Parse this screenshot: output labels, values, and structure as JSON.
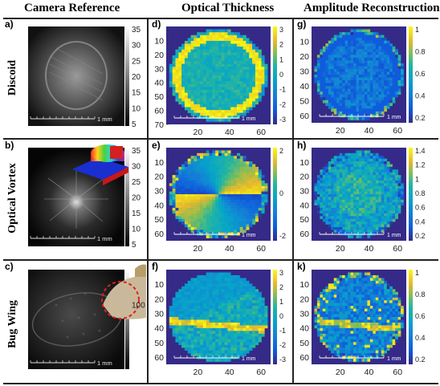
{
  "columns": [
    "Camera Reference",
    "Optical Thickness",
    "Amplitude Reconstruction"
  ],
  "rows": [
    "Discoid",
    "Optical Vortex",
    "Bug Wing"
  ],
  "scale_bar_label": "1 mm",
  "panels": [
    {
      "label": "a)",
      "colorbar_ticks": [
        "35",
        "30",
        "25",
        "20",
        "15",
        "10",
        "5"
      ]
    },
    {
      "label": "b)",
      "colorbar_ticks": [
        "35",
        "30",
        "25",
        "20",
        "15",
        "10",
        "5"
      ]
    },
    {
      "label": "c)",
      "colorbar_ticks": [
        "100"
      ]
    },
    {
      "label": "d)",
      "y_ticks": [
        "10",
        "20",
        "30",
        "40",
        "50",
        "60",
        "70"
      ],
      "x_ticks": [
        "20",
        "40",
        "60"
      ],
      "colorbar_ticks": [
        "3",
        "2",
        "1",
        "0",
        "-1",
        "-2",
        "-3"
      ]
    },
    {
      "label": "e)",
      "y_ticks": [
        "10",
        "20",
        "30",
        "40",
        "50",
        "60"
      ],
      "x_ticks": [
        "20",
        "40",
        "60"
      ],
      "colorbar_ticks": [
        "2",
        "0",
        "-2"
      ]
    },
    {
      "label": "f)",
      "y_ticks": [
        "10",
        "20",
        "30",
        "40",
        "50",
        "60"
      ],
      "x_ticks": [
        "20",
        "40",
        "60"
      ],
      "colorbar_ticks": [
        "3",
        "2",
        "1",
        "0",
        "-1",
        "-2",
        "-3"
      ]
    },
    {
      "label": "g)",
      "y_ticks": [
        "10",
        "20",
        "30",
        "40",
        "50",
        "60"
      ],
      "x_ticks": [
        "20",
        "40",
        "60"
      ],
      "colorbar_ticks": [
        "1",
        "0.8",
        "0.6",
        "0.4",
        "0.2"
      ]
    },
    {
      "label": "h)",
      "y_ticks": [
        "10",
        "20",
        "30",
        "40",
        "50",
        "60"
      ],
      "x_ticks": [
        "20",
        "40",
        "60"
      ],
      "colorbar_ticks": [
        "1.4",
        "1.2",
        "1",
        "0.8",
        "0.6",
        "0.4",
        "0.2"
      ]
    },
    {
      "label": "k)",
      "y_ticks": [
        "10",
        "20",
        "30",
        "40",
        "50",
        "60"
      ],
      "x_ticks": [
        "20",
        "40",
        "60"
      ],
      "colorbar_ticks": [
        "1",
        "0.8",
        "0.6",
        "0.4",
        "0.2"
      ]
    }
  ],
  "colors": {
    "parula_low": "#352a87",
    "parula_mid": "#21b5a4",
    "parula_high": "#f9fb0e",
    "divider": "#222222",
    "highlight_circle": "#e0201a"
  }
}
